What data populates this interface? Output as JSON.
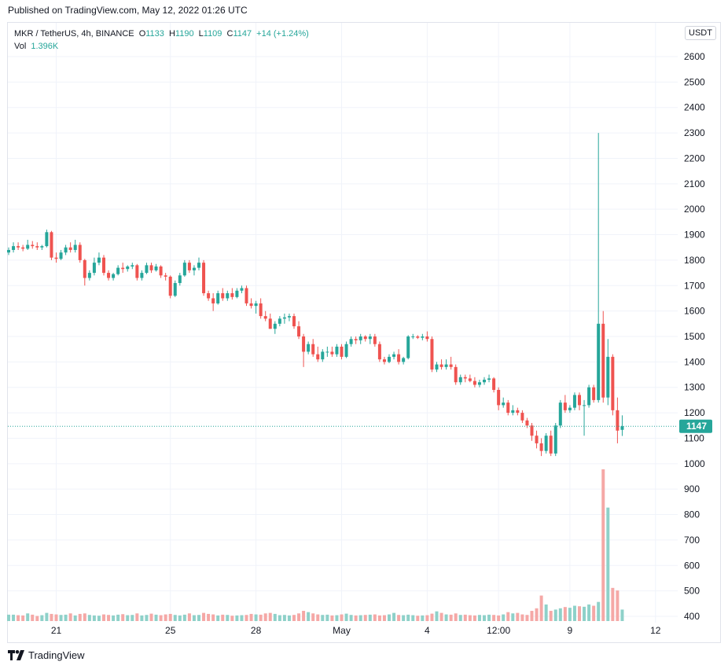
{
  "header": {
    "published": "Published on TradingView.com, May 12, 2022 01:26 UTC"
  },
  "legend": {
    "symbol": "MKR / TetherUS, 4h, BINANCE",
    "o_label": "O",
    "o_value": "1133",
    "h_label": "H",
    "h_value": "1190",
    "l_label": "L",
    "l_value": "1109",
    "c_label": "C",
    "c_value": "1147",
    "change": "+14 (+1.24%)",
    "vol_label": "Vol",
    "vol_value": "1.396K"
  },
  "currency_button": "USDT",
  "last_price_label": "1147",
  "brand": {
    "name": "TradingView",
    "icon": "tradingview-logo-icon"
  },
  "colors": {
    "up": "#26a69a",
    "down": "#ef5350",
    "up_volume": "#8ed1c9",
    "down_volume": "#f5a8a6",
    "grid": "#f0f3fa"
  },
  "chart_data": {
    "type": "candlestick",
    "symbol": "MKR / TetherUS",
    "interval": "4h",
    "exchange": "BINANCE",
    "ylim": [
      380,
      2670
    ],
    "y_ticks": [
      400,
      500,
      600,
      700,
      800,
      900,
      1000,
      1100,
      1200,
      1300,
      1400,
      1500,
      1600,
      1700,
      1800,
      1900,
      2000,
      2100,
      2200,
      2300,
      2400,
      2500,
      2600
    ],
    "x_tick_labels": [
      {
        "label": "21",
        "bar": 10
      },
      {
        "label": "25",
        "bar": 34
      },
      {
        "label": "28",
        "bar": 52
      },
      {
        "label": "May",
        "bar": 70
      },
      {
        "label": "4",
        "bar": 88
      },
      {
        "label": "12:00",
        "bar": 103
      },
      {
        "label": "9",
        "bar": 118
      },
      {
        "label": "12",
        "bar": 136
      }
    ],
    "last_price": 1147,
    "grid": true,
    "candles": [
      [
        1830,
        1850,
        1820,
        1840
      ],
      [
        1840,
        1870,
        1830,
        1855
      ],
      [
        1855,
        1870,
        1840,
        1850
      ],
      [
        1850,
        1860,
        1835,
        1845
      ],
      [
        1845,
        1880,
        1840,
        1860
      ],
      [
        1860,
        1875,
        1845,
        1855
      ],
      [
        1855,
        1870,
        1840,
        1850
      ],
      [
        1850,
        1860,
        1840,
        1855
      ],
      [
        1855,
        1920,
        1850,
        1910
      ],
      [
        1910,
        1915,
        1800,
        1810
      ],
      [
        1810,
        1830,
        1790,
        1805
      ],
      [
        1805,
        1840,
        1800,
        1830
      ],
      [
        1830,
        1860,
        1820,
        1850
      ],
      [
        1850,
        1870,
        1830,
        1840
      ],
      [
        1840,
        1880,
        1830,
        1860
      ],
      [
        1860,
        1870,
        1790,
        1800
      ],
      [
        1800,
        1805,
        1700,
        1730
      ],
      [
        1730,
        1760,
        1720,
        1750
      ],
      [
        1750,
        1810,
        1740,
        1790
      ],
      [
        1790,
        1830,
        1780,
        1810
      ],
      [
        1810,
        1820,
        1740,
        1750
      ],
      [
        1750,
        1760,
        1720,
        1730
      ],
      [
        1730,
        1750,
        1720,
        1745
      ],
      [
        1745,
        1780,
        1740,
        1770
      ],
      [
        1770,
        1790,
        1750,
        1765
      ],
      [
        1765,
        1780,
        1755,
        1775
      ],
      [
        1775,
        1790,
        1765,
        1780
      ],
      [
        1780,
        1785,
        1720,
        1730
      ],
      [
        1730,
        1760,
        1720,
        1750
      ],
      [
        1750,
        1790,
        1745,
        1780
      ],
      [
        1780,
        1790,
        1750,
        1760
      ],
      [
        1760,
        1785,
        1755,
        1775
      ],
      [
        1775,
        1780,
        1730,
        1740
      ],
      [
        1740,
        1750,
        1720,
        1735
      ],
      [
        1735,
        1740,
        1650,
        1660
      ],
      [
        1660,
        1720,
        1655,
        1710
      ],
      [
        1710,
        1750,
        1700,
        1740
      ],
      [
        1740,
        1800,
        1735,
        1790
      ],
      [
        1790,
        1800,
        1750,
        1760
      ],
      [
        1760,
        1780,
        1740,
        1770
      ],
      [
        1770,
        1810,
        1760,
        1790
      ],
      [
        1790,
        1800,
        1660,
        1670
      ],
      [
        1670,
        1680,
        1640,
        1650
      ],
      [
        1650,
        1670,
        1600,
        1630
      ],
      [
        1630,
        1680,
        1625,
        1670
      ],
      [
        1670,
        1690,
        1640,
        1650
      ],
      [
        1650,
        1680,
        1640,
        1670
      ],
      [
        1670,
        1690,
        1645,
        1655
      ],
      [
        1655,
        1690,
        1650,
        1680
      ],
      [
        1680,
        1700,
        1670,
        1690
      ],
      [
        1690,
        1700,
        1620,
        1630
      ],
      [
        1630,
        1650,
        1610,
        1620
      ],
      [
        1620,
        1640,
        1590,
        1630
      ],
      [
        1630,
        1650,
        1570,
        1580
      ],
      [
        1580,
        1600,
        1560,
        1570
      ],
      [
        1570,
        1590,
        1530,
        1530
      ],
      [
        1530,
        1560,
        1510,
        1550
      ],
      [
        1550,
        1580,
        1540,
        1570
      ],
      [
        1570,
        1590,
        1550,
        1575
      ],
      [
        1575,
        1590,
        1560,
        1580
      ],
      [
        1580,
        1590,
        1530,
        1540
      ],
      [
        1540,
        1560,
        1490,
        1500
      ],
      [
        1500,
        1510,
        1380,
        1440
      ],
      [
        1440,
        1480,
        1430,
        1470
      ],
      [
        1470,
        1490,
        1420,
        1430
      ],
      [
        1430,
        1460,
        1400,
        1410
      ],
      [
        1410,
        1450,
        1400,
        1440
      ],
      [
        1440,
        1460,
        1420,
        1440
      ],
      [
        1440,
        1460,
        1420,
        1430
      ],
      [
        1430,
        1470,
        1420,
        1460
      ],
      [
        1460,
        1470,
        1410,
        1420
      ],
      [
        1420,
        1480,
        1415,
        1470
      ],
      [
        1470,
        1500,
        1460,
        1490
      ],
      [
        1490,
        1500,
        1470,
        1485
      ],
      [
        1485,
        1510,
        1470,
        1500
      ],
      [
        1500,
        1505,
        1480,
        1490
      ],
      [
        1490,
        1510,
        1470,
        1500
      ],
      [
        1500,
        1510,
        1460,
        1470
      ],
      [
        1470,
        1480,
        1400,
        1410
      ],
      [
        1410,
        1420,
        1390,
        1400
      ],
      [
        1400,
        1430,
        1395,
        1420
      ],
      [
        1420,
        1440,
        1410,
        1430
      ],
      [
        1430,
        1450,
        1390,
        1400
      ],
      [
        1400,
        1420,
        1390,
        1415
      ],
      [
        1415,
        1505,
        1410,
        1500
      ],
      [
        1500,
        1510,
        1490,
        1500
      ],
      [
        1500,
        1505,
        1490,
        1495
      ],
      [
        1495,
        1510,
        1485,
        1500
      ],
      [
        1500,
        1520,
        1480,
        1490
      ],
      [
        1490,
        1500,
        1360,
        1370
      ],
      [
        1370,
        1400,
        1360,
        1390
      ],
      [
        1390,
        1410,
        1370,
        1380
      ],
      [
        1380,
        1410,
        1370,
        1390
      ],
      [
        1390,
        1420,
        1370,
        1380
      ],
      [
        1380,
        1390,
        1310,
        1320
      ],
      [
        1320,
        1350,
        1310,
        1340
      ],
      [
        1340,
        1350,
        1320,
        1335
      ],
      [
        1335,
        1350,
        1320,
        1325
      ],
      [
        1325,
        1340,
        1300,
        1310
      ],
      [
        1310,
        1330,
        1300,
        1320
      ],
      [
        1320,
        1340,
        1310,
        1330
      ],
      [
        1330,
        1350,
        1320,
        1335
      ],
      [
        1335,
        1340,
        1280,
        1290
      ],
      [
        1290,
        1300,
        1210,
        1230
      ],
      [
        1230,
        1260,
        1220,
        1240
      ],
      [
        1240,
        1250,
        1190,
        1200
      ],
      [
        1200,
        1230,
        1190,
        1210
      ],
      [
        1210,
        1220,
        1190,
        1200
      ],
      [
        1200,
        1210,
        1160,
        1170
      ],
      [
        1170,
        1180,
        1140,
        1150
      ],
      [
        1150,
        1160,
        1090,
        1110
      ],
      [
        1110,
        1130,
        1060,
        1080
      ],
      [
        1080,
        1100,
        1030,
        1050
      ],
      [
        1050,
        1120,
        1040,
        1110
      ],
      [
        1110,
        1130,
        1030,
        1040
      ],
      [
        1040,
        1160,
        1030,
        1150
      ],
      [
        1150,
        1250,
        1140,
        1240
      ],
      [
        1240,
        1270,
        1200,
        1210
      ],
      [
        1210,
        1230,
        1200,
        1220
      ],
      [
        1220,
        1280,
        1210,
        1270
      ],
      [
        1270,
        1280,
        1210,
        1230
      ],
      [
        1230,
        1250,
        1110,
        1230
      ],
      [
        1230,
        1310,
        1220,
        1300
      ],
      [
        1300,
        1310,
        1240,
        1250
      ],
      [
        1250,
        2300,
        1240,
        1550
      ],
      [
        1550,
        1600,
        1240,
        1260
      ],
      [
        1260,
        1490,
        1230,
        1420
      ],
      [
        1420,
        1430,
        1190,
        1210
      ],
      [
        1210,
        1260,
        1080,
        1130
      ],
      [
        1133,
        1190,
        1109,
        1147
      ]
    ],
    "volume_values": [
      405,
      405,
      403,
      402,
      410,
      405,
      400,
      403,
      412,
      408,
      406,
      404,
      405,
      410,
      402,
      408,
      410,
      404,
      402,
      401,
      406,
      404,
      402,
      405,
      407,
      403,
      404,
      410,
      402,
      404,
      409,
      405,
      403,
      406,
      408,
      404,
      402,
      405,
      410,
      403,
      404,
      412,
      408,
      406,
      402,
      405,
      404,
      401,
      402,
      403,
      404,
      408,
      406,
      405,
      410,
      412,
      408,
      403,
      404,
      402,
      404,
      410,
      420,
      415,
      410,
      406,
      404,
      405,
      402,
      403,
      406,
      409,
      404,
      402,
      403,
      404,
      405,
      406,
      402,
      403,
      406,
      412,
      404,
      403,
      405,
      403,
      401,
      402,
      403,
      409,
      418,
      412,
      406,
      405,
      410,
      404,
      405,
      403,
      402,
      404,
      403,
      405,
      404,
      402,
      406,
      415,
      410,
      412,
      406,
      404,
      420,
      430,
      480,
      445,
      420,
      425,
      430,
      435,
      432,
      440,
      438,
      436,
      445,
      440,
      455,
      975,
      825,
      510,
      500,
      425
    ]
  }
}
